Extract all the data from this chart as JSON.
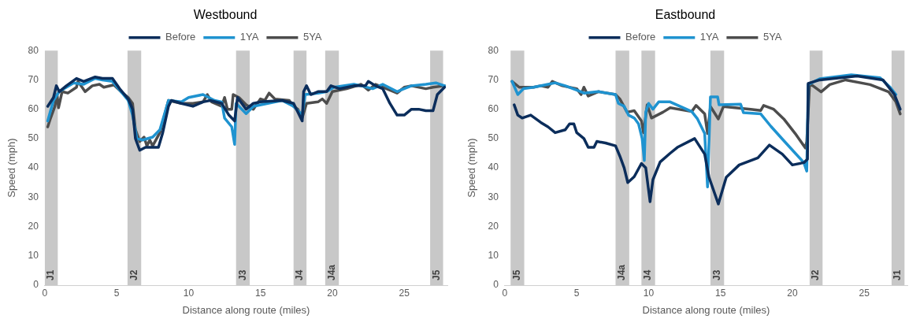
{
  "chart_data": [
    {
      "type": "line",
      "title": "Westbound",
      "xlabel": "Distance along route (miles)",
      "ylabel": "Speed (mph)",
      "xlim": [
        0,
        28
      ],
      "xticks": [
        0,
        5,
        10,
        15,
        20,
        25
      ],
      "ylim": [
        0,
        80
      ],
      "yticks": [
        0,
        10,
        20,
        30,
        40,
        50,
        60,
        70,
        80
      ],
      "grid": false,
      "legend": "top",
      "marker": "none",
      "bands": [
        {
          "axis": "x",
          "from": 0,
          "to": 0.9,
          "label": "J1",
          "color": "#c8c8c8"
        },
        {
          "axis": "x",
          "from": 5.75,
          "to": 6.7,
          "label": "J2",
          "color": "#c8c8c8"
        },
        {
          "axis": "x",
          "from": 13.3,
          "to": 14.25,
          "label": "J3",
          "color": "#c8c8c8"
        },
        {
          "axis": "x",
          "from": 17.3,
          "to": 18.2,
          "label": "J4",
          "color": "#c8c8c8"
        },
        {
          "axis": "x",
          "from": 19.5,
          "to": 20.45,
          "label": "J4a",
          "color": "#c8c8c8"
        },
        {
          "axis": "x",
          "from": 26.8,
          "to": 27.7,
          "label": "J5",
          "color": "#c8c8c8"
        }
      ],
      "series": [
        {
          "name": "Before",
          "color": "#0b2d5b",
          "x": [
            0.2,
            0.6,
            0.8,
            1.0,
            1.5,
            2.2,
            2.7,
            3.5,
            4.0,
            4.7,
            5.2,
            5.8,
            6.1,
            6.3,
            6.6,
            7.0,
            7.5,
            7.9,
            8.2,
            8.6,
            8.8,
            9.5,
            10.3,
            11.0,
            11.5,
            12.3,
            12.8,
            13.2,
            13.4,
            14.0,
            14.5,
            15.0,
            16.5,
            17.3,
            17.9,
            18.0,
            18.2,
            18.5,
            19.0,
            19.6,
            19.9,
            20.5,
            21.5,
            22.3,
            22.5,
            23.0,
            23.5,
            24.0,
            24.5,
            25.0,
            25.5,
            26.0,
            26.5,
            27.0,
            27.3,
            27.8
          ],
          "values": [
            61,
            64,
            68,
            66,
            68,
            70.5,
            69.5,
            71,
            70.5,
            70.5,
            67,
            63.5,
            60,
            50,
            46,
            47,
            47,
            47,
            52,
            61,
            63,
            62,
            61,
            62.5,
            63,
            62,
            58,
            56,
            64,
            60,
            62,
            62.5,
            63,
            62,
            56,
            66,
            68,
            65,
            66,
            66,
            68,
            67,
            68,
            68,
            69.5,
            68,
            67,
            62,
            58,
            58,
            60,
            60,
            59.5,
            59.5,
            65,
            67.5
          ]
        },
        {
          "name": "1YA",
          "color": "#1f93d0",
          "x": [
            0.2,
            0.6,
            1.0,
            2.0,
            2.7,
            3.5,
            4.0,
            4.7,
            5.3,
            5.8,
            6.1,
            6.4,
            6.8,
            7.5,
            8.0,
            8.6,
            9.5,
            10.0,
            11.0,
            11.8,
            12.3,
            12.5,
            13.0,
            13.2,
            13.3,
            14.0,
            14.5,
            15.5,
            16.5,
            17.3,
            17.9,
            18.1,
            19.0,
            19.6,
            20.1,
            21.5,
            22.0,
            22.8,
            23.5,
            24.5,
            25.5,
            26.5,
            27.2,
            27.8
          ],
          "values": [
            56,
            63,
            66,
            69,
            68.5,
            70.5,
            70,
            69.5,
            66,
            63,
            58,
            50,
            49.5,
            50.5,
            53,
            63,
            62.5,
            64,
            65,
            63,
            62.5,
            57,
            54,
            48,
            62,
            58.5,
            61,
            62,
            63,
            61,
            58,
            65,
            65.5,
            66,
            67.5,
            68.5,
            68,
            67,
            68.5,
            66,
            68,
            68.5,
            69,
            68
          ]
        },
        {
          "name": "5YA",
          "color": "#4d4d4d",
          "x": [
            0.2,
            0.4,
            0.7,
            0.85,
            0.95,
            1.2,
            1.6,
            2.2,
            2.3,
            2.8,
            3.3,
            3.8,
            4.1,
            4.8,
            5.3,
            5.8,
            6.1,
            6.3,
            6.6,
            6.9,
            7.1,
            7.3,
            7.5,
            8.0,
            8.6,
            9.5,
            10.3,
            11.0,
            11.3,
            11.6,
            12.3,
            12.5,
            12.7,
            13.0,
            13.1,
            13.5,
            14.0,
            14.5,
            15.0,
            15.3,
            15.6,
            16.0,
            17.0,
            17.3,
            17.6,
            17.9,
            18.2,
            19.0,
            19.3,
            19.6,
            20.0,
            21.0,
            22.0,
            22.5,
            23.0,
            23.5,
            24.5,
            25.0,
            25.5,
            26.5,
            27.0,
            27.8
          ],
          "values": [
            54,
            57,
            61,
            65,
            60.5,
            66,
            65.5,
            67.5,
            69.5,
            66,
            68,
            68.5,
            67.5,
            68.3,
            66,
            64,
            62,
            53,
            49,
            50.5,
            47.5,
            49.5,
            47.5,
            52,
            63,
            62,
            62,
            62.5,
            65,
            62.5,
            61,
            64,
            60,
            60,
            65,
            64,
            61.5,
            60,
            63.5,
            63,
            65.5,
            63.5,
            63,
            61,
            60,
            57,
            62,
            62.5,
            63.5,
            62,
            66,
            67,
            68.5,
            66.5,
            68.5,
            67.5,
            65.5,
            67.5,
            68,
            67,
            67.5,
            68
          ]
        }
      ]
    },
    {
      "type": "line",
      "title": "Eastbound",
      "xlabel": "Distance along route (miles)",
      "ylabel": "Speed (mph)",
      "xlim": [
        0,
        28
      ],
      "xticks": [
        0,
        5,
        10,
        15,
        20,
        25
      ],
      "ylim": [
        0,
        80
      ],
      "yticks": [
        0,
        10,
        20,
        30,
        40,
        50,
        60,
        70,
        80
      ],
      "grid": false,
      "legend": "top",
      "marker": "none",
      "bands": [
        {
          "axis": "x",
          "from": 0.4,
          "to": 1.35,
          "label": "J5",
          "color": "#c8c8c8"
        },
        {
          "axis": "x",
          "from": 7.7,
          "to": 8.65,
          "label": "J4a",
          "color": "#c8c8c8"
        },
        {
          "axis": "x",
          "from": 9.5,
          "to": 10.45,
          "label": "J4",
          "color": "#c8c8c8"
        },
        {
          "axis": "x",
          "from": 14.3,
          "to": 15.25,
          "label": "J3",
          "color": "#c8c8c8"
        },
        {
          "axis": "x",
          "from": 21.2,
          "to": 22.1,
          "label": "J2",
          "color": "#c8c8c8"
        },
        {
          "axis": "x",
          "from": 26.9,
          "to": 27.8,
          "label": "J1",
          "color": "#c8c8c8"
        }
      ],
      "series": [
        {
          "name": "Before",
          "color": "#0b2d5b",
          "x": [
            0.65,
            0.9,
            1.2,
            1.8,
            2.5,
            3.0,
            3.5,
            4.2,
            4.5,
            4.8,
            5.0,
            5.5,
            5.8,
            6.2,
            6.4,
            7.0,
            7.7,
            8.0,
            8.3,
            8.55,
            9.0,
            9.5,
            9.8,
            10.1,
            10.3,
            10.8,
            11.5,
            12.0,
            13.2,
            13.9,
            14.2,
            14.85,
            15.4,
            16.3,
            17.6,
            18.4,
            19.3,
            20.0,
            20.8,
            21.05,
            21.1,
            21.9,
            24.5,
            26.3,
            27.1,
            27.5
          ],
          "values": [
            61.5,
            58,
            57,
            58,
            55.5,
            54,
            52,
            53,
            55,
            55,
            52,
            50,
            47,
            47,
            49,
            48.5,
            47.5,
            44,
            40,
            35,
            37,
            41.5,
            40,
            28.5,
            36,
            42,
            45,
            47,
            50,
            44.7,
            36.8,
            27.7,
            36.8,
            41,
            43.4,
            47.8,
            44.7,
            41,
            41.8,
            43,
            68.8,
            70,
            71.3,
            70,
            65,
            60
          ]
        },
        {
          "name": "1YA",
          "color": "#1f93d0",
          "x": [
            0.5,
            0.9,
            1.3,
            2.0,
            3.0,
            3.5,
            4.2,
            5.0,
            5.5,
            6.5,
            7.7,
            7.9,
            8.3,
            8.6,
            9.0,
            9.3,
            9.55,
            9.7,
            9.8,
            10.0,
            10.3,
            10.7,
            11.5,
            13.0,
            13.4,
            13.9,
            14.1,
            14.3,
            14.8,
            14.9,
            16.4,
            16.6,
            17.8,
            18.5,
            19.4,
            20.8,
            21.0,
            21.1,
            21.9,
            24.1,
            26.1,
            26.8,
            27.2
          ],
          "values": [
            69.5,
            65,
            67,
            67.5,
            68.5,
            69,
            68,
            66.5,
            65.5,
            66,
            65,
            62,
            61,
            58,
            57,
            55,
            50,
            42.5,
            59,
            62,
            60,
            62.5,
            62.5,
            59.2,
            56.7,
            51.7,
            33.5,
            64.2,
            64.2,
            61.5,
            61.7,
            58.8,
            58.4,
            54.2,
            49.3,
            41.8,
            38.9,
            68.4,
            70.4,
            71.7,
            70.7,
            67.5,
            65
          ]
        },
        {
          "name": "5YA",
          "color": "#4d4d4d",
          "x": [
            0.5,
            1.0,
            2.0,
            2.5,
            3.0,
            3.3,
            4.0,
            5.0,
            5.3,
            5.5,
            5.8,
            6.5,
            7.7,
            8.0,
            8.5,
            9.0,
            9.5,
            9.65,
            9.9,
            10.2,
            11.0,
            11.5,
            13.0,
            13.3,
            13.9,
            14.1,
            14.3,
            14.85,
            15.2,
            17.1,
            17.8,
            18.0,
            18.7,
            19.4,
            20.2,
            20.9,
            21.0,
            21.2,
            22.0,
            22.6,
            23.7,
            25.4,
            26.7,
            27.2,
            27.5
          ],
          "values": [
            69.5,
            67.5,
            67.5,
            68,
            67.5,
            69.5,
            68,
            67,
            65,
            67.5,
            64.5,
            66,
            65,
            63.5,
            59,
            59.5,
            56,
            52,
            61.5,
            57,
            59,
            60.5,
            59.2,
            61.3,
            58.4,
            51.7,
            60.9,
            56.7,
            60.9,
            60,
            59.6,
            61.3,
            60,
            56.7,
            51.7,
            46.8,
            49,
            68.8,
            65.9,
            68.4,
            70,
            68.4,
            65.9,
            62.5,
            58.4
          ]
        }
      ]
    }
  ]
}
